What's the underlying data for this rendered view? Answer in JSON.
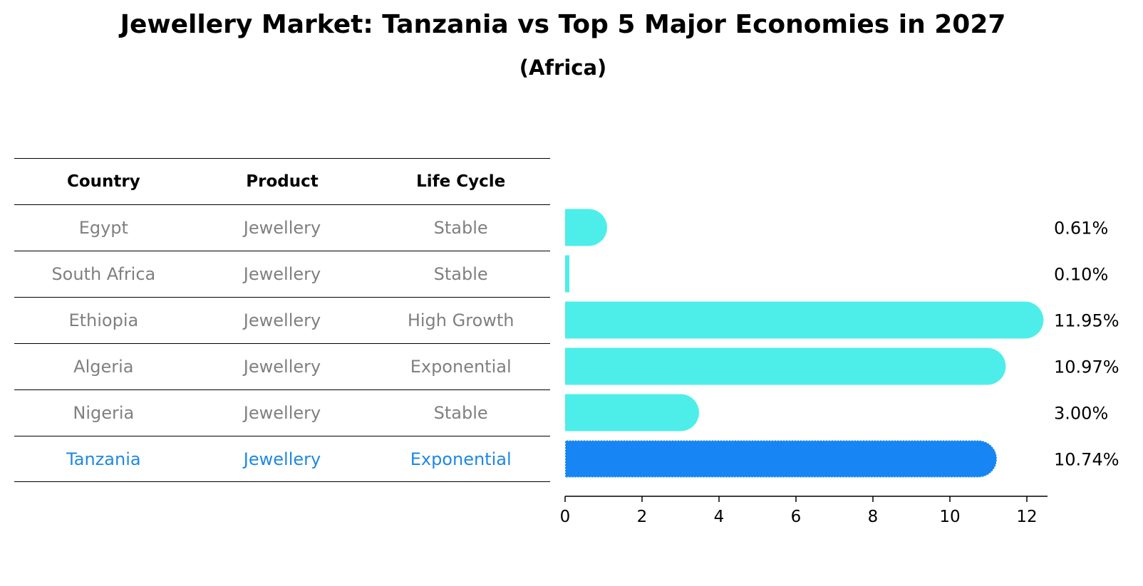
{
  "title": "Jewellery Market: Tanzania vs Top 5 Major Economies in 2027",
  "subtitle": "(Africa)",
  "table": {
    "headers": [
      "Country",
      "Product",
      "Life Cycle"
    ],
    "rows": [
      {
        "country": "Egypt",
        "product": "Jewellery",
        "life_cycle": "Stable"
      },
      {
        "country": "South Africa",
        "product": "Jewellery",
        "life_cycle": "Stable"
      },
      {
        "country": "Ethiopia",
        "product": "Jewellery",
        "life_cycle": "High Growth"
      },
      {
        "country": "Algeria",
        "product": "Jewellery",
        "life_cycle": "Exponential"
      },
      {
        "country": "Nigeria",
        "product": "Jewellery",
        "life_cycle": "Stable"
      },
      {
        "country": "Tanzania",
        "product": "Jewellery",
        "life_cycle": "Exponential"
      }
    ]
  },
  "chart_data": {
    "type": "bar",
    "orientation": "horizontal",
    "categories": [
      "Egypt",
      "South Africa",
      "Ethiopia",
      "Algeria",
      "Nigeria",
      "Tanzania"
    ],
    "values": [
      0.61,
      0.1,
      11.95,
      10.97,
      3.0,
      10.74
    ],
    "value_labels": [
      "0.61%",
      "0.10%",
      "11.95%",
      "10.97%",
      "3.00%",
      "10.74%"
    ],
    "highlight": "Tanzania",
    "colors": {
      "default": "#4deee9",
      "highlight": "#1785f3",
      "text": "#000000",
      "muted_text": "#808080",
      "highlight_text": "#1e88e5"
    },
    "xticks": [
      0,
      2,
      4,
      6,
      8,
      10,
      12
    ],
    "xlim": [
      0,
      12.6
    ],
    "grid": false,
    "xlabel": "",
    "ylabel": ""
  }
}
